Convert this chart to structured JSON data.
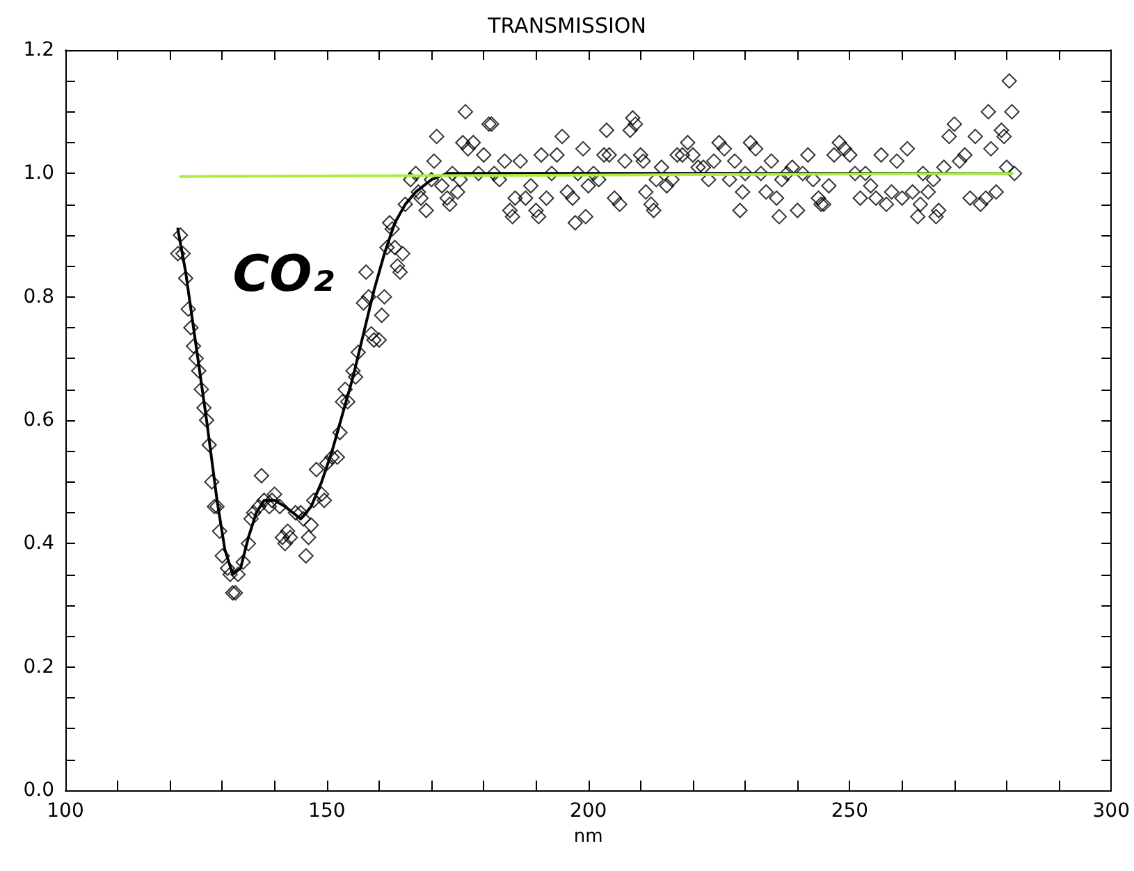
{
  "chart_data": {
    "type": "scatter",
    "title": "TRANSMISSION",
    "xlabel": "nm",
    "annotations": [
      "CO₂"
    ],
    "xlim": [
      100,
      300
    ],
    "xticks": [
      100,
      {
        "value": 110,
        "label": null
      },
      {
        "value": 120,
        "label": null
      },
      {
        "value": 130,
        "label": null
      },
      {
        "value": 140,
        "label": null
      },
      150,
      {
        "value": 160,
        "label": null
      },
      {
        "value": 170,
        "label": null
      },
      {
        "value": 180,
        "label": null
      },
      {
        "value": 190,
        "label": null
      },
      200,
      {
        "value": 210,
        "label": null
      },
      {
        "value": 220,
        "label": null
      },
      {
        "value": 230,
        "label": null
      },
      {
        "value": 240,
        "label": null
      },
      250,
      {
        "value": 260,
        "label": null
      },
      {
        "value": 270,
        "label": null
      },
      {
        "value": 280,
        "label": null
      },
      {
        "value": 290,
        "label": null
      },
      300
    ],
    "ylim": [
      0,
      1.2
    ],
    "yticks": [
      {
        "value": 0,
        "label": "0.0"
      },
      {
        "value": 0.05,
        "label": null
      },
      {
        "value": 0.1,
        "label": null
      },
      {
        "value": 0.15,
        "label": null
      },
      0.2,
      {
        "value": 0.25,
        "label": null
      },
      {
        "value": 0.3,
        "label": null
      },
      {
        "value": 0.35,
        "label": null
      },
      0.4,
      {
        "value": 0.45,
        "label": null
      },
      {
        "value": 0.5,
        "label": null
      },
      {
        "value": 0.55,
        "label": null
      },
      0.6,
      {
        "value": 0.65,
        "label": null
      },
      {
        "value": 0.7,
        "label": null
      },
      {
        "value": 0.75,
        "label": null
      },
      0.8,
      {
        "value": 0.85,
        "label": null
      },
      {
        "value": 0.9,
        "label": null
      },
      {
        "value": 0.95,
        "label": null
      },
      {
        "value": 1,
        "label": "1.0"
      },
      {
        "value": 1.05,
        "label": null
      },
      {
        "value": 1.1,
        "label": null
      },
      {
        "value": 1.15,
        "label": null
      },
      1.2
    ],
    "grid": false,
    "series": [
      {
        "marker": "diamond",
        "color": "#000000",
        "x": [
          121.5,
          122,
          122.5,
          123,
          123.5,
          124,
          124.5,
          125,
          125.5,
          126,
          126.5,
          127,
          127.5,
          128,
          128.5,
          129,
          129.5,
          130,
          131,
          131.5,
          132,
          132.5,
          133,
          134,
          135,
          135.5,
          136,
          137,
          137.5,
          138,
          139,
          139.5,
          140,
          141,
          141.5,
          142,
          142.5,
          143,
          144,
          145,
          145.5,
          146,
          146.5,
          147,
          147.5,
          148,
          149,
          149.5,
          150,
          151,
          152,
          152.5,
          153,
          153.5,
          154,
          155,
          155.5,
          156,
          157,
          157.5,
          158,
          158.5,
          159,
          160,
          160.5,
          161,
          161.5,
          162,
          162.5,
          163,
          163.5,
          164,
          164.5,
          165,
          166,
          167,
          167.5,
          168,
          169,
          170,
          170.5,
          171,
          172,
          173,
          173.5,
          174,
          175,
          175.5,
          176,
          176.5,
          177,
          178,
          179,
          180,
          181,
          181.5,
          182,
          183,
          184,
          185,
          185.5,
          186,
          187,
          188,
          189,
          190,
          190.5,
          191,
          192,
          193,
          194,
          195,
          196,
          197,
          197.5,
          198,
          199,
          199.5,
          200,
          201,
          202,
          203,
          203.5,
          204,
          205,
          206,
          207,
          208,
          208.5,
          209,
          210,
          210.5,
          211,
          212,
          212.5,
          213,
          214,
          215,
          216,
          217,
          218,
          219,
          220,
          221,
          222,
          223,
          224,
          225,
          226,
          227,
          228,
          229,
          229.5,
          230,
          231,
          232,
          233,
          234,
          235,
          236,
          236.5,
          237,
          238,
          239,
          240,
          241,
          242,
          243,
          244,
          244.5,
          245,
          246,
          247,
          248,
          249,
          250,
          251,
          252,
          253,
          254,
          255,
          256,
          257,
          258,
          259,
          260,
          261,
          262,
          263,
          263.5,
          264,
          265,
          266,
          266.5,
          267,
          268,
          269,
          270,
          271,
          272,
          273,
          274,
          275,
          276,
          276.5,
          277,
          278,
          279,
          279.5,
          280,
          280.5,
          281,
          281.5
        ],
        "values": [
          0.87,
          0.9,
          0.87,
          0.83,
          0.78,
          0.75,
          0.72,
          0.7,
          0.68,
          0.65,
          0.62,
          0.6,
          0.56,
          0.5,
          0.46,
          0.46,
          0.42,
          0.38,
          0.36,
          0.35,
          0.32,
          0.32,
          0.35,
          0.37,
          0.4,
          0.44,
          0.45,
          0.46,
          0.51,
          0.47,
          0.46,
          0.47,
          0.48,
          0.46,
          0.41,
          0.4,
          0.42,
          0.41,
          0.45,
          0.45,
          0.44,
          0.38,
          0.41,
          0.43,
          0.47,
          0.52,
          0.48,
          0.47,
          0.53,
          0.54,
          0.54,
          0.58,
          0.63,
          0.65,
          0.63,
          0.68,
          0.67,
          0.71,
          0.79,
          0.84,
          0.8,
          0.74,
          0.73,
          0.73,
          0.77,
          0.8,
          0.88,
          0.92,
          0.91,
          0.88,
          0.85,
          0.84,
          0.87,
          0.95,
          0.99,
          1.0,
          0.97,
          0.96,
          0.94,
          0.99,
          1.02,
          1.06,
          0.98,
          0.96,
          0.95,
          1.0,
          0.97,
          0.99,
          1.05,
          1.1,
          1.04,
          1.05,
          1.0,
          1.03,
          1.08,
          1.08,
          1.0,
          0.99,
          1.02,
          0.94,
          0.93,
          0.96,
          1.02,
          0.96,
          0.98,
          0.94,
          0.93,
          1.03,
          0.96,
          1.0,
          1.03,
          1.06,
          0.97,
          0.96,
          0.92,
          1.0,
          1.04,
          0.93,
          0.98,
          1.0,
          0.99,
          1.03,
          1.07,
          1.03,
          0.96,
          0.95,
          1.02,
          1.07,
          1.09,
          1.08,
          1.03,
          1.02,
          0.97,
          0.95,
          0.94,
          0.99,
          1.01,
          0.98,
          0.99,
          1.03,
          1.03,
          1.05,
          1.03,
          1.01,
          1.01,
          0.99,
          1.02,
          1.05,
          1.04,
          0.99,
          1.02,
          0.94,
          0.97,
          1.0,
          1.05,
          1.04,
          1.0,
          0.97,
          1.02,
          0.96,
          0.93,
          0.99,
          1.0,
          1.01,
          0.94,
          1.0,
          1.03,
          0.99,
          0.96,
          0.95,
          0.95,
          0.98,
          1.03,
          1.05,
          1.04,
          1.03,
          1.0,
          0.96,
          1.0,
          0.98,
          0.96,
          1.03,
          0.95,
          0.97,
          1.02,
          0.96,
          1.04,
          0.97,
          0.93,
          0.95,
          1.0,
          0.97,
          0.99,
          0.93,
          0.94,
          1.01,
          1.06,
          1.08,
          1.02,
          1.03,
          0.96,
          1.06,
          0.95,
          0.96,
          1.1,
          1.04,
          0.97,
          1.07,
          1.06,
          1.01,
          1.15,
          1.1,
          1.0
        ]
      },
      {
        "type": "line",
        "marker": "none",
        "line_style": "solid",
        "color": "#000000",
        "x": [
          121.5,
          123,
          125,
          127,
          129,
          130.5,
          132,
          133.5,
          135,
          136.5,
          138,
          140,
          142,
          143.5,
          145,
          147,
          149,
          151,
          153,
          155,
          157,
          159,
          161,
          163,
          165,
          167,
          170,
          173,
          180,
          200,
          240,
          281
        ],
        "values": [
          0.91,
          0.84,
          0.72,
          0.6,
          0.47,
          0.39,
          0.35,
          0.36,
          0.41,
          0.45,
          0.47,
          0.47,
          0.46,
          0.45,
          0.44,
          0.46,
          0.5,
          0.55,
          0.61,
          0.67,
          0.74,
          0.81,
          0.87,
          0.92,
          0.95,
          0.97,
          0.99,
          1.0,
          1.0,
          1.0,
          1.0,
          1.0
        ]
      },
      {
        "type": "line",
        "marker": "none",
        "line_style": "solid",
        "color": "#aaee44",
        "x": [
          122,
          281
        ],
        "values": [
          0.995,
          1.0
        ]
      }
    ]
  }
}
